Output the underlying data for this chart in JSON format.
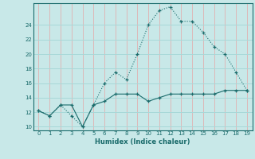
{
  "xlabel": "Humidex (Indice chaleur)",
  "x": [
    0,
    1,
    2,
    3,
    4,
    5,
    6,
    7,
    8,
    9,
    10,
    11,
    12,
    13,
    14,
    15,
    16,
    17,
    18,
    19
  ],
  "line1": [
    12.2,
    11.5,
    13.0,
    11.5,
    10.0,
    13.0,
    16.0,
    17.5,
    16.5,
    20.0,
    24.0,
    26.0,
    26.5,
    24.5,
    24.5,
    23.0,
    21.0,
    20.0,
    17.5,
    15.0
  ],
  "line2": [
    12.2,
    11.5,
    13.0,
    13.0,
    10.0,
    13.0,
    13.5,
    14.5,
    14.5,
    14.5,
    13.5,
    14.0,
    14.5,
    14.5,
    14.5,
    14.5,
    14.5,
    15.0,
    15.0,
    15.0
  ],
  "line_color": "#1a6b6b",
  "bg_color": "#c8e8e8",
  "hgrid_color": "#a8d8d8",
  "vgrid_color": "#ddb8b8",
  "ylim": [
    9.5,
    27.0
  ],
  "xlim": [
    -0.5,
    19.5
  ],
  "yticks": [
    10,
    12,
    14,
    16,
    18,
    20,
    22,
    24
  ],
  "xticks": [
    0,
    1,
    2,
    3,
    4,
    5,
    6,
    7,
    8,
    9,
    10,
    11,
    12,
    13,
    14,
    15,
    16,
    17,
    18,
    19
  ]
}
